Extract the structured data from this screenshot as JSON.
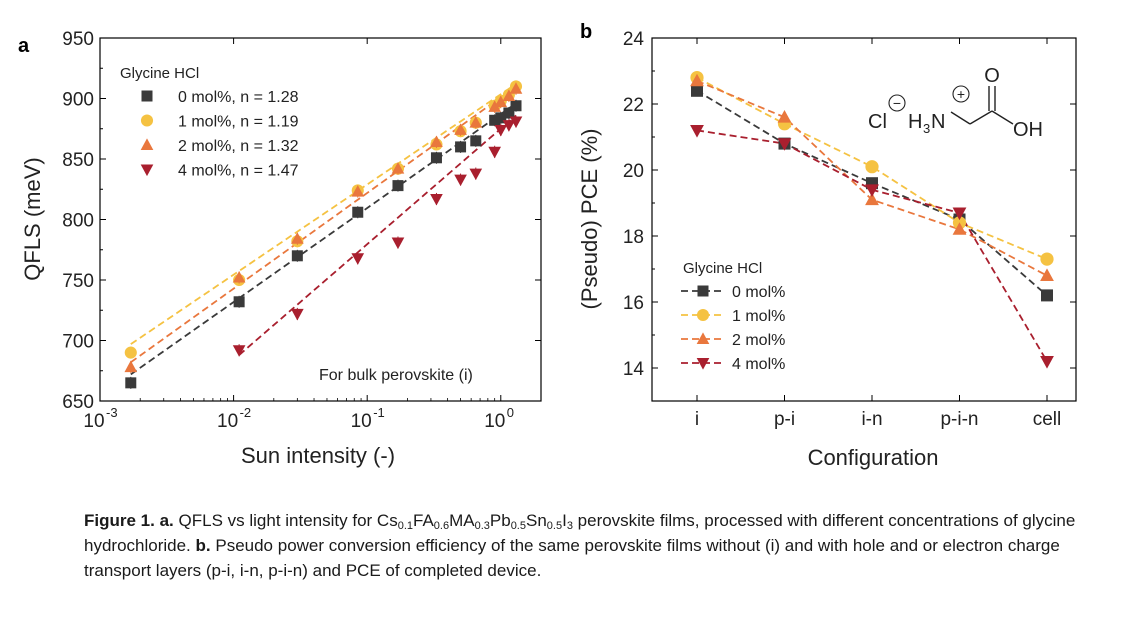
{
  "chart_data": [
    {
      "type": "scatter",
      "panel_label": "a",
      "xlabel": "Sun intensity (-)",
      "ylabel": "QFLS (meV)",
      "xscale": "log",
      "xlim": [
        0.001,
        2
      ],
      "ylim": [
        650,
        950
      ],
      "xticks": [
        0.001,
        0.01,
        0.1,
        1
      ],
      "xtick_labels": [
        {
          "base": "10",
          "exp": "-3"
        },
        {
          "base": "10",
          "exp": "-2"
        },
        {
          "base": "10",
          "exp": "-1"
        },
        {
          "base": "10",
          "exp": "0"
        }
      ],
      "yticks": [
        650,
        700,
        750,
        800,
        850,
        900,
        950
      ],
      "ytick_labels": [
        "650",
        "700",
        "750",
        "800",
        "850",
        "900",
        "950"
      ],
      "legend_title": "Glycine HCl",
      "legend_position": "top-left",
      "annotation": "For bulk perovskite (i)",
      "series": [
        {
          "name": "0 mol%, n = 1.28",
          "color": "#3a3a3a",
          "marker": "square",
          "x": [
            0.0017,
            0.011,
            0.03,
            0.085,
            0.17,
            0.33,
            0.5,
            0.65,
            0.9,
            1.0,
            1.15,
            1.3
          ],
          "y": [
            665,
            732,
            770,
            806,
            828,
            851,
            860,
            865,
            882,
            884,
            888,
            894
          ],
          "fit": [
            [
              0.0017,
              672
            ],
            [
              1.3,
              896
            ]
          ]
        },
        {
          "name": "1 mol%, n = 1.19",
          "color": "#f5c242",
          "marker": "circle",
          "x": [
            0.0017,
            0.011,
            0.03,
            0.085,
            0.17,
            0.33,
            0.5,
            0.65,
            0.9,
            1.0,
            1.15,
            1.3
          ],
          "y": [
            690,
            750,
            782,
            824,
            842,
            862,
            873,
            880,
            894,
            898,
            903,
            910
          ],
          "fit": [
            [
              0.0017,
              697
            ],
            [
              1.3,
              912
            ]
          ]
        },
        {
          "name": "2 mol%, n = 1.32",
          "color": "#e9773d",
          "marker": "triangle-up",
          "x": [
            0.0017,
            0.011,
            0.03,
            0.085,
            0.17,
            0.33,
            0.5,
            0.65,
            0.9,
            1.0,
            1.15,
            1.3
          ],
          "y": [
            678,
            752,
            784,
            823,
            842,
            864,
            874,
            880,
            893,
            897,
            902,
            908
          ],
          "fit": [
            [
              0.0017,
              682
            ],
            [
              1.3,
              910
            ]
          ]
        },
        {
          "name": "4 mol%, n = 1.47",
          "color": "#a91f2e",
          "marker": "triangle-down",
          "x": [
            0.011,
            0.03,
            0.085,
            0.17,
            0.33,
            0.5,
            0.65,
            0.9,
            1.0,
            1.15,
            1.3
          ],
          "y": [
            692,
            722,
            768,
            781,
            817,
            833,
            838,
            856,
            874,
            878,
            881
          ],
          "fit": [
            [
              0.011,
              688
            ],
            [
              1.3,
              886
            ]
          ]
        }
      ]
    },
    {
      "type": "line",
      "panel_label": "b",
      "xlabel": "Configuration",
      "ylabel": "(Pseudo) PCE (%)",
      "categories": [
        "i",
        "p-i",
        "i-n",
        "p-i-n",
        "cell"
      ],
      "ylim": [
        13,
        24
      ],
      "yticks": [
        14,
        16,
        18,
        20,
        22,
        24
      ],
      "ytick_labels": [
        "14",
        "16",
        "18",
        "20",
        "22",
        "24"
      ],
      "legend_title": "Glycine HCl",
      "legend_position": "bottom-left",
      "series": [
        {
          "name": "0 mol%",
          "color": "#3a3a3a",
          "marker": "square",
          "values": [
            22.4,
            20.8,
            19.6,
            18.5,
            16.2
          ]
        },
        {
          "name": "1 mol%",
          "color": "#f5c242",
          "marker": "circle",
          "values": [
            22.8,
            21.4,
            20.1,
            18.4,
            17.3
          ]
        },
        {
          "name": "2 mol%",
          "color": "#e9773d",
          "marker": "triangle-up",
          "values": [
            22.7,
            21.6,
            19.1,
            18.2,
            16.8
          ]
        },
        {
          "name": "4 mol%",
          "color": "#a91f2e",
          "marker": "triangle-down",
          "values": [
            21.2,
            20.8,
            19.4,
            18.7,
            14.2
          ]
        }
      ],
      "structure": {
        "counter_ion": "Cl",
        "counter_charge": "−",
        "cation_charge": "+",
        "amine_h": "H",
        "amine_sub": "3",
        "amine_n": "N",
        "carbonyl_o": "O",
        "hydroxyl": "OH"
      }
    }
  ],
  "caption": {
    "fig_label": "Figure 1.",
    "a_label": "a.",
    "a_text_1": "QFLS vs light intensity for ",
    "f_cs": "Cs",
    "f_cs_sub": "0.1",
    "f_fa": "FA",
    "f_fa_sub": "0.6",
    "f_ma": "MA",
    "f_ma_sub": "0.3",
    "f_pb": "Pb",
    "f_pb_sub": "0.5",
    "f_sn": "Sn",
    "f_sn_sub": "0.5",
    "f_i": "I",
    "f_i_sub": "3",
    "a_text_2": " perovskite films, processed with different concentrations of glycine hydrochloride. ",
    "b_label": "b.",
    "b_text": "Pseudo power conversion efficiency of the same perovskite films without (i) and with hole and or electron charge transport layers (p-i, i-n, p-i-n) and PCE of completed device."
  }
}
